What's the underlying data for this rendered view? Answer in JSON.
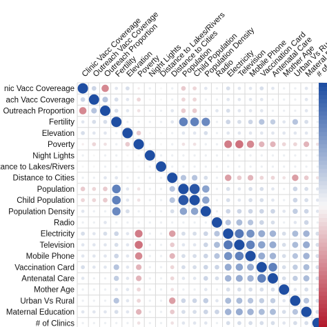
{
  "chart_data": {
    "type": "heatmap",
    "style": "correlation-circles",
    "grid": true,
    "legend": "color bar right, cropped",
    "colors": {
      "negative": "#b2182b",
      "positive": "#1f4ea2",
      "neutral": "#f7f7f7"
    },
    "variables": [
      "Clinic Vacc Covereage",
      "Outreach Vacc Coverage",
      "Outreach Proportion",
      "Fertility",
      "Elevation",
      "Poverty",
      "Night Lights",
      "Distance to Lakes/Rivers",
      "Distance to Cities",
      "Population",
      "Child Population",
      "Population Density",
      "Radio",
      "Electricity",
      "Television",
      "Mobile Phone",
      "Vaccination Card",
      "Antenatal Care",
      "Mother Age",
      "Urban Vs Rural",
      "Maternal Education",
      "# of Clinics"
    ],
    "row_labels": [
      "nic Vacc Covereage",
      "ach Vacc Coverage",
      "Outreach Proportion",
      "Fertility",
      "Elevation",
      "Poverty",
      "Night Lights",
      "tance to Lakes/Rivers",
      "Distance to Cities",
      "Population",
      "Child Population",
      "Population Density",
      "Radio",
      "Electricity",
      "Television",
      "Mobile Phone",
      "Vaccination Card",
      "Antenatal Care",
      "Mother Age",
      "Urban Vs Rural",
      "Maternal Education",
      "# of Clinics"
    ],
    "column_labels": [
      "Clinic Vacc Covereage",
      "Outreach Vacc Coverage",
      "Outreach Proportion",
      "Fertility",
      "Elevation",
      "Poverty",
      "Night Lights",
      "Distance to Lakes/Rivers",
      "Distance to Cities",
      "Population",
      "Child Population",
      "Population Density",
      "Radio",
      "Electricity",
      "Television",
      "Mobile Phone",
      "Vaccination Card",
      "Antenatal Care",
      "Mother Age",
      "Urban Vs Rural",
      "Materal E",
      "# of C"
    ],
    "correlations": [
      [
        1.0,
        0.2,
        -0.5,
        0.1,
        0.15,
        -0.05,
        0.05,
        0.0,
        0.05,
        -0.2,
        -0.15,
        0.1,
        0.05,
        0.15,
        0.1,
        0.1,
        0.15,
        0.1,
        0.05,
        0.05,
        0.1,
        0.05
      ],
      [
        0.2,
        1.0,
        0.3,
        0.15,
        0.1,
        -0.15,
        0.0,
        0.0,
        0.05,
        -0.15,
        -0.15,
        0.05,
        0.05,
        0.1,
        0.1,
        0.1,
        0.1,
        0.05,
        0.05,
        0.05,
        0.1,
        0.05
      ],
      [
        -0.5,
        0.3,
        1.0,
        0.15,
        0.1,
        -0.1,
        0.05,
        0.05,
        0.1,
        -0.2,
        -0.2,
        0.05,
        0.1,
        0.15,
        0.1,
        0.1,
        0.1,
        0.05,
        0.05,
        0.05,
        0.1,
        0.05
      ],
      [
        0.1,
        0.15,
        0.15,
        1.0,
        0.05,
        0.05,
        0.05,
        0.05,
        0.1,
        0.7,
        0.7,
        0.65,
        0.05,
        0.2,
        0.15,
        0.2,
        0.3,
        0.25,
        0.1,
        0.3,
        0.15,
        0.05
      ],
      [
        0.15,
        0.1,
        0.1,
        0.05,
        1.0,
        -0.2,
        0.0,
        0.0,
        0.05,
        0.1,
        0.1,
        0.15,
        0.05,
        0.1,
        0.1,
        0.1,
        0.1,
        0.1,
        0.1,
        0.1,
        0.1,
        0.05
      ],
      [
        -0.05,
        -0.15,
        -0.1,
        0.05,
        -0.2,
        1.0,
        0.0,
        0.0,
        0.05,
        -0.1,
        -0.1,
        0.05,
        0.05,
        -0.55,
        -0.6,
        -0.5,
        -0.3,
        -0.3,
        -0.15,
        -0.15,
        -0.3,
        -0.1
      ],
      [
        0.05,
        0.0,
        0.05,
        0.05,
        0.0,
        0.0,
        1.0,
        0.05,
        0.05,
        0.05,
        0.05,
        0.05,
        0.05,
        0.05,
        0.05,
        0.05,
        0.05,
        0.05,
        0.05,
        0.05,
        0.05,
        0.05
      ],
      [
        0.0,
        0.0,
        0.05,
        0.05,
        0.0,
        0.0,
        0.05,
        1.0,
        0.05,
        0.05,
        0.05,
        0.05,
        0.05,
        0.05,
        0.05,
        0.05,
        0.05,
        0.05,
        0.05,
        0.05,
        0.05,
        0.05
      ],
      [
        0.05,
        0.05,
        0.1,
        0.1,
        0.05,
        0.05,
        0.05,
        0.05,
        1.0,
        0.3,
        0.3,
        0.15,
        0.05,
        -0.4,
        -0.2,
        -0.3,
        -0.15,
        -0.15,
        -0.1,
        -0.4,
        -0.2,
        -0.1
      ],
      [
        -0.2,
        -0.15,
        -0.2,
        0.7,
        0.1,
        -0.1,
        0.05,
        0.05,
        0.3,
        1.0,
        0.95,
        0.5,
        0.05,
        0.15,
        0.1,
        0.15,
        0.15,
        0.1,
        0.05,
        0.2,
        0.15,
        0.1
      ],
      [
        -0.15,
        -0.15,
        -0.2,
        0.7,
        0.1,
        -0.1,
        0.05,
        0.05,
        0.3,
        0.95,
        1.0,
        0.5,
        0.05,
        0.15,
        0.1,
        0.15,
        0.15,
        0.1,
        0.05,
        0.2,
        0.15,
        0.1
      ],
      [
        0.1,
        0.05,
        0.05,
        0.65,
        0.15,
        0.05,
        0.05,
        0.05,
        0.15,
        0.5,
        0.5,
        1.0,
        0.05,
        0.2,
        0.2,
        0.2,
        0.2,
        0.2,
        0.1,
        0.25,
        0.2,
        0.1
      ],
      [
        0.05,
        0.05,
        0.1,
        0.05,
        0.05,
        0.05,
        0.05,
        0.05,
        0.05,
        0.05,
        0.05,
        0.05,
        1.0,
        0.3,
        0.35,
        0.3,
        0.2,
        0.15,
        0.05,
        0.1,
        0.2,
        0.05
      ],
      [
        0.15,
        0.1,
        0.15,
        0.2,
        0.1,
        -0.55,
        0.05,
        0.05,
        -0.4,
        0.15,
        0.15,
        0.2,
        0.3,
        1.0,
        0.75,
        0.6,
        0.45,
        0.4,
        0.15,
        0.35,
        0.4,
        0.15
      ],
      [
        0.1,
        0.1,
        0.1,
        0.15,
        0.1,
        -0.6,
        0.05,
        0.05,
        -0.2,
        0.1,
        0.1,
        0.2,
        0.35,
        0.75,
        1.0,
        0.7,
        0.5,
        0.45,
        0.15,
        0.35,
        0.45,
        0.15
      ],
      [
        0.1,
        0.1,
        0.1,
        0.2,
        0.1,
        -0.5,
        0.05,
        0.05,
        -0.3,
        0.15,
        0.15,
        0.2,
        0.3,
        0.6,
        0.7,
        1.0,
        0.45,
        0.4,
        0.15,
        0.3,
        0.4,
        0.15
      ],
      [
        0.15,
        0.1,
        0.1,
        0.3,
        0.1,
        -0.3,
        0.05,
        0.05,
        -0.15,
        0.15,
        0.15,
        0.2,
        0.2,
        0.45,
        0.5,
        0.45,
        1.0,
        0.7,
        0.15,
        0.25,
        0.35,
        0.15
      ],
      [
        0.1,
        0.05,
        0.05,
        0.25,
        0.1,
        -0.3,
        0.05,
        0.05,
        -0.15,
        0.1,
        0.1,
        0.2,
        0.15,
        0.4,
        0.45,
        0.4,
        0.7,
        1.0,
        0.15,
        0.25,
        0.35,
        0.15
      ],
      [
        0.05,
        0.05,
        0.05,
        0.1,
        0.1,
        -0.15,
        0.05,
        0.05,
        -0.1,
        0.05,
        0.05,
        0.1,
        0.05,
        0.15,
        0.15,
        0.15,
        0.15,
        0.15,
        1.0,
        0.1,
        0.15,
        0.1
      ],
      [
        0.05,
        0.05,
        0.05,
        0.3,
        0.1,
        -0.15,
        0.05,
        0.05,
        -0.4,
        0.2,
        0.2,
        0.25,
        0.1,
        0.35,
        0.35,
        0.3,
        0.25,
        0.25,
        0.1,
        1.0,
        0.3,
        0.15
      ],
      [
        0.1,
        0.1,
        0.1,
        0.15,
        0.1,
        -0.3,
        0.05,
        0.05,
        -0.2,
        0.15,
        0.15,
        0.2,
        0.2,
        0.4,
        0.45,
        0.4,
        0.35,
        0.35,
        0.15,
        0.3,
        1.0,
        0.15
      ],
      [
        0.05,
        0.05,
        0.05,
        0.05,
        0.05,
        -0.1,
        0.05,
        0.05,
        -0.1,
        0.1,
        0.1,
        0.1,
        0.05,
        0.15,
        0.15,
        0.15,
        0.15,
        0.15,
        0.1,
        0.15,
        0.15,
        1.0
      ]
    ]
  }
}
